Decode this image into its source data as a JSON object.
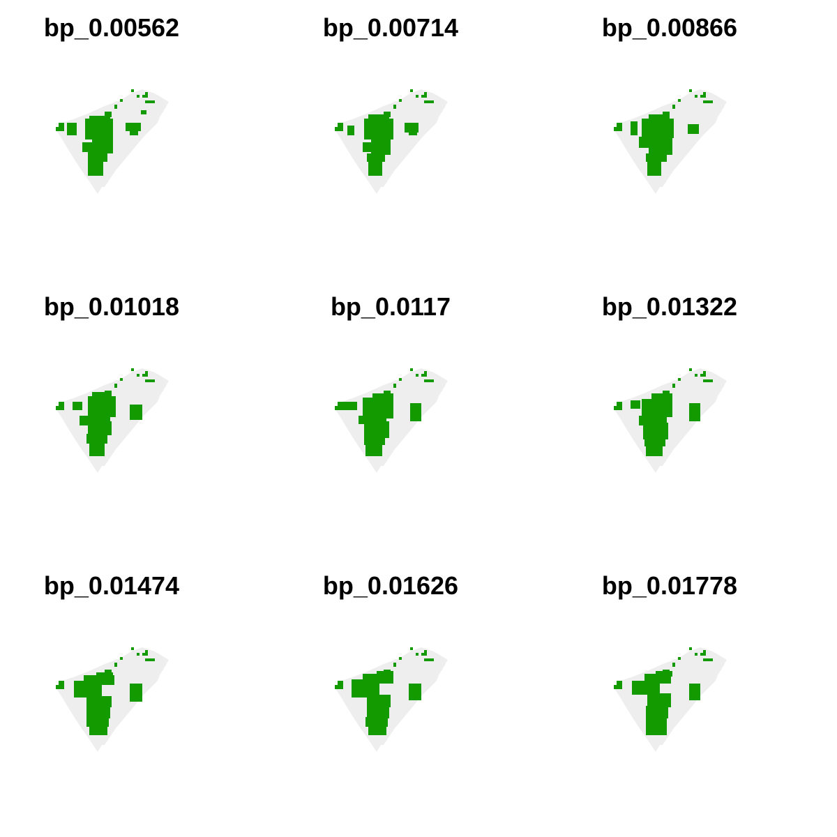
{
  "colors": {
    "background": "#ffffff",
    "region_fill": "#eeeeee",
    "presence": "#129a00",
    "title_text": "#000000"
  },
  "panels": [
    {
      "title": "bp_0.00562",
      "variant": 0
    },
    {
      "title": "bp_0.00714",
      "variant": 1
    },
    {
      "title": "bp_0.00866",
      "variant": 2
    },
    {
      "title": "bp_0.01018",
      "variant": 3
    },
    {
      "title": "bp_0.0117",
      "variant": 4
    },
    {
      "title": "bp_0.01322",
      "variant": 5
    },
    {
      "title": "bp_0.01474",
      "variant": 6
    },
    {
      "title": "bp_0.01626",
      "variant": 7
    },
    {
      "title": "bp_0.01778",
      "variant": 8
    }
  ]
}
